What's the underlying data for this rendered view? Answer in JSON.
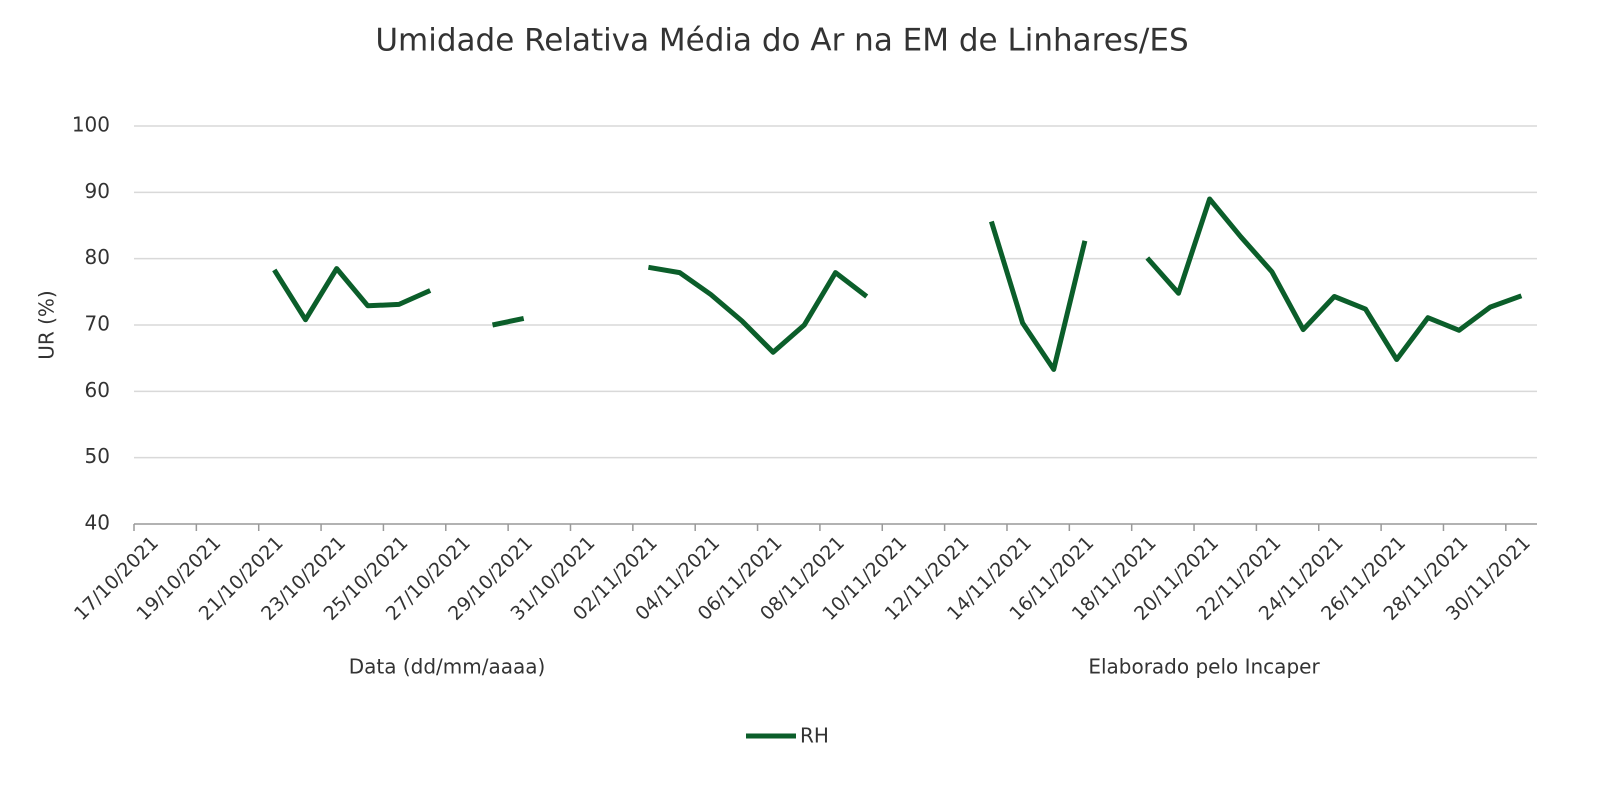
{
  "chart_data": {
    "type": "line",
    "title": "Umidade Relativa Média do Ar na EM de Linhares/ES",
    "y_label": "UR (%)",
    "annotations": [
      "Data (dd/mm/aaaa)",
      "Elaborado pelo Incaper"
    ],
    "categories": [
      "17/10/2021",
      null,
      "19/10/2021",
      null,
      "21/10/2021",
      null,
      "23/10/2021",
      null,
      "25/10/2021",
      null,
      "27/10/2021",
      null,
      "29/10/2021",
      null,
      "31/10/2021",
      null,
      "02/11/2021",
      null,
      "04/11/2021",
      null,
      "06/11/2021",
      null,
      "08/11/2021",
      null,
      "10/11/2021",
      null,
      "12/11/2021",
      null,
      "14/11/2021",
      null,
      "16/11/2021",
      null,
      "18/11/2021",
      null,
      "20/11/2021",
      null,
      "22/11/2021",
      null,
      "24/11/2021",
      null,
      "26/11/2021",
      null,
      "28/11/2021",
      null,
      "30/11/2021"
    ],
    "series": [
      {
        "name": "RH",
        "color": "#0b5e2a",
        "values": [
          null,
          null,
          null,
          null,
          78.3,
          70.8,
          78.5,
          72.9,
          73.1,
          75.2,
          null,
          70.0,
          71.0,
          null,
          null,
          null,
          78.7,
          77.9,
          74.6,
          70.6,
          65.9,
          70.0,
          77.9,
          74.3,
          null,
          null,
          null,
          85.6,
          70.3,
          63.3,
          82.7,
          null,
          80.1,
          74.8,
          89.0,
          83.3,
          78.0,
          69.3,
          74.3,
          72.4,
          64.8,
          71.1,
          69.2,
          72.7,
          74.4
        ]
      }
    ],
    "ylim": [
      40,
      100
    ],
    "yticks": [
      40,
      50,
      60,
      70,
      80,
      90,
      100
    ],
    "grid": true,
    "legend": "bottom"
  }
}
